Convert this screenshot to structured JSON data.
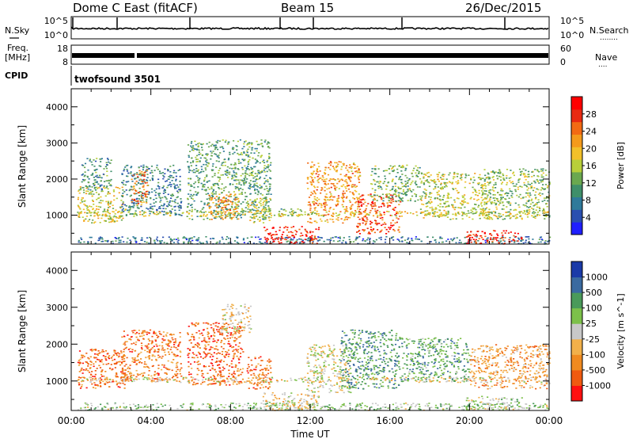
{
  "header": {
    "station": "Dome C East (fitACF)",
    "beam": "Beam 15",
    "date": "26/Dec/2015"
  },
  "strips": {
    "nsky": {
      "label": "N.Sky",
      "left_ticks": [
        "10^5",
        "10^0"
      ],
      "right_ticks": [
        "10^5",
        "10^0"
      ],
      "right_label": "N.Search",
      "right_dots": "........"
    },
    "freq": {
      "label_line1": "Freq.",
      "label_line2": "[MHz]",
      "left_ticks": [
        "18",
        "8"
      ],
      "right_ticks": [
        "60",
        "0"
      ],
      "right_label": "Nave",
      "right_dots": "...."
    },
    "cpid": {
      "label": "CPID",
      "value": "twofsound 3501"
    }
  },
  "chart_data": [
    {
      "type": "heatmap",
      "name": "power-panel",
      "ylabel": "Slant Range [km]",
      "xlabel": "Time UT",
      "ylim": [
        200,
        4500
      ],
      "xlim": [
        0,
        24
      ],
      "y_ticks": [
        "1000",
        "2000",
        "3000",
        "4000"
      ],
      "y_tick_values": [
        1000,
        2000,
        3000,
        4000
      ],
      "x_ticks": [
        "00:00",
        "04:00",
        "08:00",
        "12:00",
        "16:00",
        "20:00",
        "00:00"
      ],
      "colorbar": {
        "label": "Power [dB]",
        "ticks": [
          "4",
          "8",
          "12",
          "16",
          "20",
          "24",
          "28"
        ],
        "tick_values": [
          4,
          8,
          12,
          16,
          20,
          24,
          28
        ],
        "range": [
          0,
          30
        ],
        "colors": [
          "#1f1fff",
          "#2a4fb0",
          "#2f7a9a",
          "#3f8f6a",
          "#6aa84f",
          "#b8cf3a",
          "#f2c02a",
          "#f49a1c",
          "#f26a14",
          "#e82a12",
          "#ff0000"
        ]
      },
      "regions": [
        {
          "t0": 0.3,
          "t1": 2.7,
          "r0": 800,
          "r1": 1800,
          "level": 0.55
        },
        {
          "t0": 0.5,
          "t1": 2.0,
          "r0": 1700,
          "r1": 2600,
          "level": 0.3
        },
        {
          "t0": 2.5,
          "t1": 5.5,
          "r0": 1000,
          "r1": 2400,
          "level": 0.25
        },
        {
          "t0": 3.0,
          "t1": 3.8,
          "r0": 1300,
          "r1": 2300,
          "level": 0.75
        },
        {
          "t0": 5.8,
          "t1": 10.0,
          "r0": 900,
          "r1": 3100,
          "level": 0.35
        },
        {
          "t0": 6.8,
          "t1": 8.5,
          "r0": 900,
          "r1": 1600,
          "level": 0.7
        },
        {
          "t0": 8.8,
          "t1": 10.0,
          "r0": 800,
          "r1": 1500,
          "level": 0.5
        },
        {
          "t0": 10.0,
          "t1": 11.6,
          "r0": 1000,
          "r1": 1200,
          "level": 0.35
        },
        {
          "t0": 11.8,
          "t1": 14.5,
          "r0": 800,
          "r1": 2500,
          "level": 0.7
        },
        {
          "t0": 14.3,
          "t1": 16.5,
          "r0": 500,
          "r1": 1600,
          "level": 0.85
        },
        {
          "t0": 15.0,
          "t1": 17.5,
          "r0": 1400,
          "r1": 2400,
          "level": 0.4
        },
        {
          "t0": 17.5,
          "t1": 21.0,
          "r0": 900,
          "r1": 2200,
          "level": 0.5
        },
        {
          "t0": 20.5,
          "t1": 24.0,
          "r0": 900,
          "r1": 2300,
          "level": 0.45
        },
        {
          "t0": 0.2,
          "t1": 24.0,
          "r0": 980,
          "r1": 1120,
          "level": 0.55
        },
        {
          "t0": 0.2,
          "t1": 24.0,
          "r0": 220,
          "r1": 420,
          "level": 0.2
        },
        {
          "t0": 9.6,
          "t1": 12.4,
          "r0": 220,
          "r1": 700,
          "level": 0.95
        },
        {
          "t0": 19.8,
          "t1": 22.6,
          "r0": 220,
          "r1": 600,
          "level": 0.95
        }
      ]
    },
    {
      "type": "heatmap",
      "name": "velocity-panel",
      "ylabel": "Slant Range [km]",
      "xlabel": "Time UT",
      "ylim": [
        200,
        4500
      ],
      "xlim": [
        0,
        24
      ],
      "y_ticks": [
        "1000",
        "2000",
        "3000",
        "4000"
      ],
      "y_tick_values": [
        1000,
        2000,
        3000,
        4000
      ],
      "x_ticks": [
        "00:00",
        "04:00",
        "08:00",
        "12:00",
        "16:00",
        "20:00",
        "00:00"
      ],
      "colorbar": {
        "label": "Velocity [m s^-1]",
        "ticks": [
          "-1000",
          "-500",
          "-100",
          "-25",
          "25",
          "100",
          "500",
          "1000"
        ],
        "tick_values": [
          -1000,
          -500,
          -100,
          -25,
          25,
          100,
          500,
          1000
        ],
        "colors": [
          "#ff1010",
          "#f05a10",
          "#f08a20",
          "#f2b04a",
          "#c8c8c8",
          "#7cc04a",
          "#4a9a5a",
          "#3a6aa0",
          "#1a3aa8"
        ]
      },
      "regions": [
        {
          "t0": 0.3,
          "t1": 2.7,
          "r0": 800,
          "r1": 1900,
          "level": 0.15
        },
        {
          "t0": 2.5,
          "t1": 5.5,
          "r0": 1000,
          "r1": 2400,
          "level": 0.2
        },
        {
          "t0": 5.8,
          "t1": 8.6,
          "r0": 900,
          "r1": 2600,
          "level": 0.15
        },
        {
          "t0": 7.5,
          "t1": 9.0,
          "r0": 2300,
          "r1": 3100,
          "level": 0.45
        },
        {
          "t0": 8.8,
          "t1": 10.0,
          "r0": 800,
          "r1": 1700,
          "level": 0.2
        },
        {
          "t0": 11.8,
          "t1": 14.0,
          "r0": 700,
          "r1": 2000,
          "level": 0.5
        },
        {
          "t0": 13.5,
          "t1": 16.5,
          "r0": 800,
          "r1": 2400,
          "level": 0.75
        },
        {
          "t0": 16.5,
          "t1": 20.0,
          "r0": 1000,
          "r1": 2200,
          "level": 0.7
        },
        {
          "t0": 20.0,
          "t1": 24.0,
          "r0": 800,
          "r1": 2000,
          "level": 0.3
        },
        {
          "t0": 0.2,
          "t1": 24.0,
          "r0": 980,
          "r1": 1120,
          "level": 0.45
        },
        {
          "t0": 0.2,
          "t1": 24.0,
          "r0": 220,
          "r1": 420,
          "level": 0.6
        },
        {
          "t0": 9.6,
          "t1": 12.4,
          "r0": 220,
          "r1": 700,
          "level": 0.45
        },
        {
          "t0": 19.8,
          "t1": 22.6,
          "r0": 220,
          "r1": 600,
          "level": 0.55
        }
      ]
    }
  ]
}
